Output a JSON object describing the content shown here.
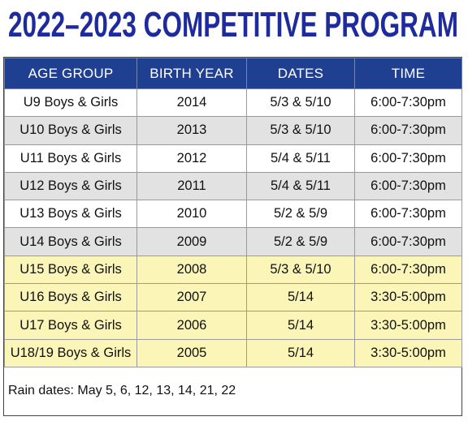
{
  "header": {
    "title": "2022–2023 COMPETITIVE PROGRAM"
  },
  "table": {
    "columns": [
      "AGE GROUP",
      "BIRTH YEAR",
      "DATES",
      "TIME"
    ],
    "rows": [
      [
        "U9 Boys & Girls",
        "2014",
        "5/3 & 5/10",
        "6:00-7:30pm"
      ],
      [
        "U10 Boys & Girls",
        "2013",
        "5/3 & 5/10",
        "6:00-7:30pm"
      ],
      [
        "U11 Boys & Girls",
        "2012",
        "5/4 & 5/11",
        "6:00-7:30pm"
      ],
      [
        "U12 Boys & Girls",
        "2011",
        "5/4 & 5/11",
        "6:00-7:30pm"
      ],
      [
        "U13 Boys & Girls",
        "2010",
        "5/2 & 5/9",
        "6:00-7:30pm"
      ],
      [
        "U14 Boys & Girls",
        "2009",
        "5/2 & 5/9",
        "6:00-7:30pm"
      ],
      [
        "U15 Boys & Girls",
        "2008",
        "5/3 & 5/10",
        "6:00-7:30pm"
      ],
      [
        "U16 Boys & Girls",
        "2007",
        "5/14",
        "3:30-5:00pm"
      ],
      [
        "U17 Boys & Girls",
        "2006",
        "5/14",
        "3:30-5:00pm"
      ],
      [
        "U18/19 Boys & Girls",
        "2005",
        "5/14",
        "3:30-5:00pm"
      ]
    ]
  },
  "footer": {
    "note": "Rain dates: May 5, 6, 12, 13, 14, 21, 22"
  }
}
